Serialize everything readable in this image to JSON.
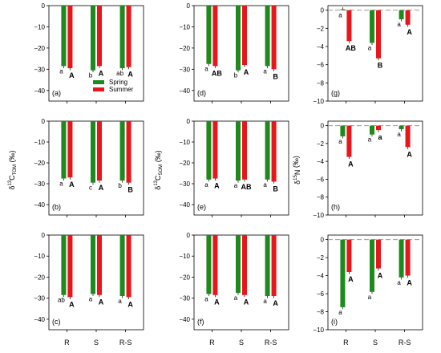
{
  "colors": {
    "spring": "#1e8a1e",
    "summer": "#e8161b",
    "zero_line": "#999999"
  },
  "legend": {
    "spring": "Spring",
    "summer": "Summer"
  },
  "y_labels": {
    "tom": {
      "base": "δ",
      "sup": "13",
      "main": "C",
      "sub": "TOM",
      "unit": " (‰)"
    },
    "som": {
      "base": "δ",
      "sup": "13",
      "main": "C",
      "sub": "SOM",
      "unit": " (‰)"
    },
    "n": {
      "base": "δ",
      "sup": "15",
      "main": "N",
      "sub": "",
      "unit": " (‰)"
    }
  },
  "chart_data": [
    {
      "panel": "(a)",
      "type": "bar",
      "categories": [
        "R",
        "S",
        "R-S"
      ],
      "ylim": [
        -45,
        0
      ],
      "yticks": [
        0,
        -10,
        -20,
        -30,
        -40
      ],
      "series": [
        {
          "name": "Spring",
          "values": [
            -28.5,
            -30.5,
            -29.5
          ]
        },
        {
          "name": "Summer",
          "values": [
            -29.5,
            -28.5,
            -29.0
          ]
        }
      ],
      "letters_spring": [
        "a",
        "b",
        "ab"
      ],
      "letters_summer": [
        "A",
        "A",
        "A"
      ],
      "legend": true
    },
    {
      "panel": "(d)",
      "type": "bar",
      "categories": [
        "R",
        "S",
        "R-S"
      ],
      "ylim": [
        -45,
        0
      ],
      "yticks": [
        0,
        -10,
        -20,
        -30,
        -40
      ],
      "series": [
        {
          "name": "Spring",
          "values": [
            -27.5,
            -30.5,
            -28.5
          ]
        },
        {
          "name": "Summer",
          "values": [
            -28.5,
            -28.0,
            -30.0
          ]
        }
      ],
      "letters_spring": [
        "a",
        "b",
        "a"
      ],
      "letters_summer": [
        "AB",
        "A",
        "B"
      ]
    },
    {
      "panel": "(g)",
      "type": "bar",
      "categories": [
        "R",
        "S",
        "R-S"
      ],
      "ylim": [
        -10,
        0.5
      ],
      "yticks": [
        0,
        -2,
        -4,
        -6,
        -8,
        -10
      ],
      "zero_line": true,
      "series": [
        {
          "name": "Spring",
          "values": [
            0.1,
            -3.6,
            -1.0
          ]
        },
        {
          "name": "Summer",
          "values": [
            -3.4,
            -5.3,
            -1.6
          ]
        }
      ],
      "letters_spring": [
        "a",
        "a",
        "a"
      ],
      "letters_summer": [
        "AB",
        "B",
        "A"
      ]
    },
    {
      "panel": "(b)",
      "type": "bar",
      "categories": [
        "R",
        "S",
        "R-S"
      ],
      "ylim": [
        -45,
        0
      ],
      "yticks": [
        0,
        -10,
        -20,
        -30,
        -40
      ],
      "series": [
        {
          "name": "Spring",
          "values": [
            -27.5,
            -29.5,
            -28.5
          ]
        },
        {
          "name": "Summer",
          "values": [
            -27.0,
            -28.5,
            -29.5
          ]
        }
      ],
      "letters_spring": [
        "a",
        "c",
        "b"
      ],
      "letters_summer": [
        "A",
        "A",
        "B"
      ]
    },
    {
      "panel": "(e)",
      "type": "bar",
      "categories": [
        "R",
        "S",
        "R-S"
      ],
      "ylim": [
        -45,
        0
      ],
      "yticks": [
        0,
        -10,
        -20,
        -30,
        -40
      ],
      "series": [
        {
          "name": "Spring",
          "values": [
            -28.0,
            -28.5,
            -28.0
          ]
        },
        {
          "name": "Summer",
          "values": [
            -27.5,
            -28.0,
            -29.0
          ]
        }
      ],
      "letters_spring": [
        "a",
        "a",
        "a"
      ],
      "letters_summer": [
        "A",
        "AB",
        "B"
      ]
    },
    {
      "panel": "(h)",
      "type": "bar",
      "categories": [
        "R",
        "S",
        "R-S"
      ],
      "ylim": [
        -10,
        0.5
      ],
      "yticks": [
        0,
        -2,
        -4,
        -6,
        -8,
        -10
      ],
      "zero_line": true,
      "series": [
        {
          "name": "Spring",
          "values": [
            -1.2,
            -1.0,
            -0.4
          ]
        },
        {
          "name": "Summer",
          "values": [
            -3.5,
            -0.5,
            -2.4
          ]
        }
      ],
      "letters_spring": [
        "a",
        "a",
        "a"
      ],
      "letters_summer": [
        "A",
        "a",
        "A"
      ]
    },
    {
      "panel": "(c)",
      "type": "bar",
      "categories": [
        "R",
        "S",
        "R-S"
      ],
      "ylim": [
        -45,
        0
      ],
      "yticks": [
        0,
        -10,
        -20,
        -30,
        -40
      ],
      "series": [
        {
          "name": "Spring",
          "values": [
            -28.5,
            -28.0,
            -29.0
          ]
        },
        {
          "name": "Summer",
          "values": [
            -29.5,
            -28.5,
            -29.5
          ]
        }
      ],
      "letters_spring": [
        "ab",
        "a",
        "a"
      ],
      "letters_summer": [
        "A",
        "A",
        "A"
      ]
    },
    {
      "panel": "(f)",
      "type": "bar",
      "categories": [
        "R",
        "S",
        "R-S"
      ],
      "ylim": [
        -45,
        0
      ],
      "yticks": [
        0,
        -10,
        -20,
        -30,
        -40
      ],
      "series": [
        {
          "name": "Spring",
          "values": [
            -28.0,
            -27.5,
            -29.0
          ]
        },
        {
          "name": "Summer",
          "values": [
            -28.5,
            -28.5,
            -29.0
          ]
        }
      ],
      "letters_spring": [
        "a",
        "a",
        "a"
      ],
      "letters_summer": [
        "A",
        "A",
        "A"
      ]
    },
    {
      "panel": "(i)",
      "type": "bar",
      "categories": [
        "R",
        "S",
        "R-S"
      ],
      "ylim": [
        -10,
        0.5
      ],
      "yticks": [
        0,
        -2,
        -4,
        -6,
        -8,
        -10
      ],
      "zero_line": true,
      "series": [
        {
          "name": "Spring",
          "values": [
            -7.5,
            -5.8,
            -4.2
          ]
        },
        {
          "name": "Summer",
          "values": [
            -3.6,
            -3.2,
            -4.0
          ]
        }
      ],
      "letters_spring": [
        "a",
        "a",
        "a"
      ],
      "letters_summer": [
        "A",
        "A",
        "A"
      ]
    }
  ]
}
